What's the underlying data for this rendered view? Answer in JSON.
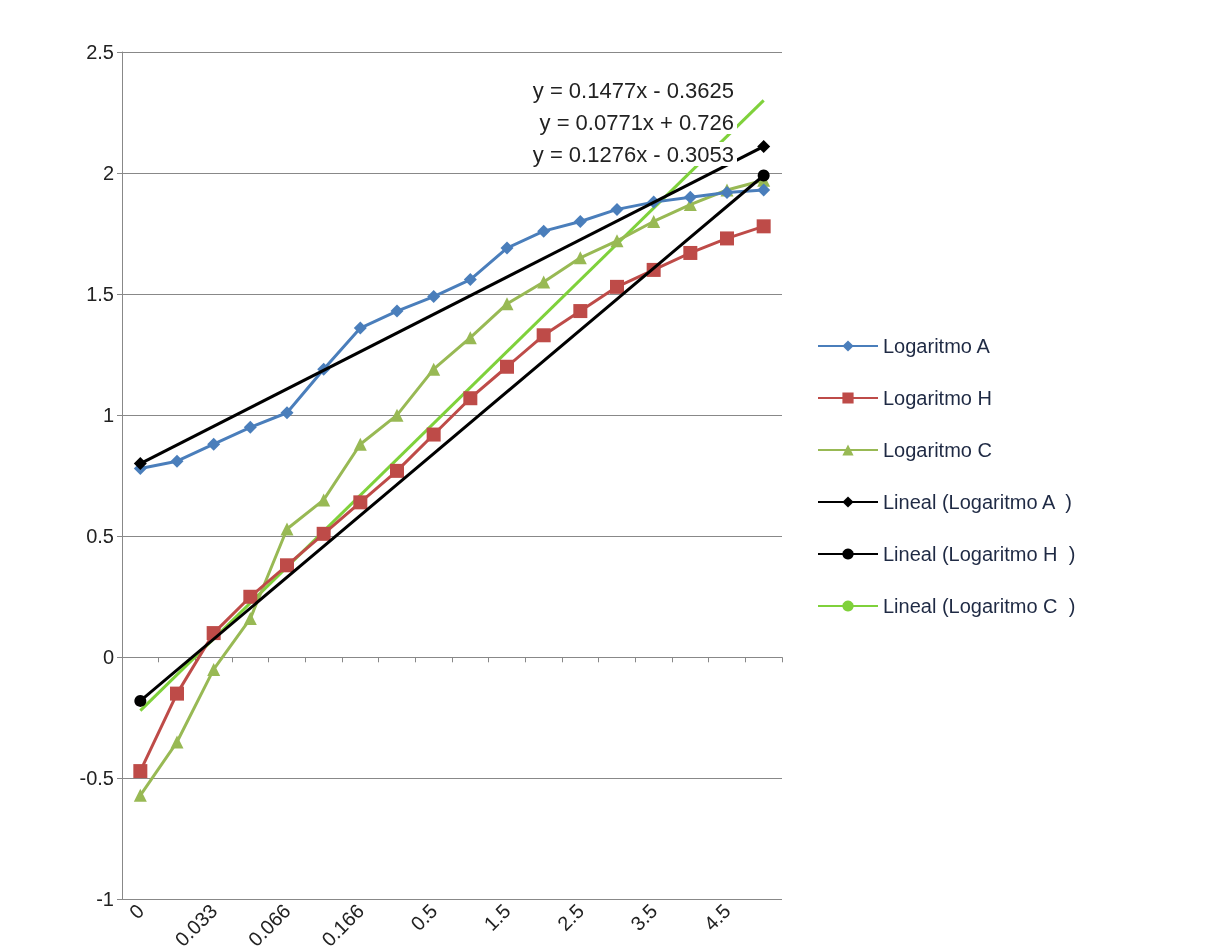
{
  "chart_data": {
    "type": "line",
    "categories": [
      "0",
      null,
      "0.033",
      null,
      "0.066",
      null,
      "0.166",
      null,
      "0.5",
      null,
      "1.5",
      null,
      "2.5",
      null,
      "3.5",
      null,
      "4.5",
      null
    ],
    "series": [
      {
        "name": "Logaritmo A",
        "color": "#4a7ebb",
        "marker": "diamond",
        "values": [
          0.78,
          0.81,
          0.88,
          0.95,
          1.01,
          1.19,
          1.36,
          1.43,
          1.49,
          1.56,
          1.69,
          1.76,
          1.8,
          1.85,
          1.88,
          1.9,
          1.92,
          1.93
        ]
      },
      {
        "name": "Logaritmo H",
        "color": "#be4b48",
        "marker": "square",
        "values": [
          -0.47,
          -0.15,
          0.1,
          0.25,
          0.38,
          0.51,
          0.64,
          0.77,
          0.92,
          1.07,
          1.2,
          1.33,
          1.43,
          1.53,
          1.6,
          1.67,
          1.73,
          1.78
        ]
      },
      {
        "name": "Logaritmo C",
        "color": "#98b954",
        "marker": "triangle",
        "values": [
          -0.57,
          -0.35,
          -0.05,
          0.16,
          0.53,
          0.65,
          0.88,
          1.0,
          1.19,
          1.32,
          1.46,
          1.55,
          1.65,
          1.72,
          1.8,
          1.87,
          1.93,
          1.97
        ]
      },
      {
        "name": "Lineal (Logaritmo A  )",
        "color": "#000000",
        "marker": "diamond",
        "values": [
          0.8,
          null,
          null,
          null,
          null,
          null,
          null,
          null,
          null,
          null,
          null,
          null,
          null,
          null,
          null,
          null,
          null,
          2.11
        ]
      },
      {
        "name": "Lineal (Logaritmo H  )",
        "color": "#000000",
        "marker": "circle",
        "values": [
          -0.18,
          null,
          null,
          null,
          null,
          null,
          null,
          null,
          null,
          null,
          null,
          null,
          null,
          null,
          null,
          null,
          null,
          1.99
        ]
      },
      {
        "name": "Lineal (Logaritmo C  )",
        "color": "#7fd13b",
        "marker": "none",
        "values": [
          -0.22,
          null,
          null,
          null,
          null,
          null,
          null,
          null,
          null,
          null,
          null,
          null,
          null,
          null,
          null,
          null,
          null,
          2.3
        ]
      }
    ],
    "ylim": [
      -1,
      2.5
    ],
    "yticks": [
      -1,
      -0.5,
      0,
      0.5,
      1,
      1.5,
      2,
      2.5
    ],
    "grid": "y",
    "legend": "right",
    "annotations": [
      "y = 0.1477x - 0.3625",
      "y = 0.0771x + 0.726",
      "y = 0.1276x - 0.3053"
    ]
  }
}
